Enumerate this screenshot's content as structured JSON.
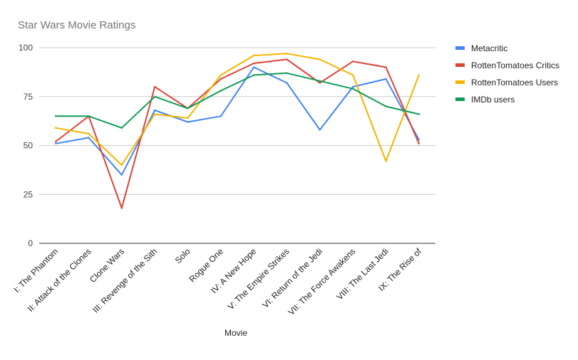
{
  "chart_data": {
    "type": "line",
    "title": "Star Wars Movie Ratings",
    "xlabel": "Movie",
    "ylabel": "",
    "ylim": [
      0,
      100
    ],
    "yticks": [
      0,
      25,
      50,
      75,
      100
    ],
    "grid": true,
    "legend_position": "right",
    "categories": [
      "I: The Phantom",
      "II: Attack of the Clones",
      "Clone Wars",
      "III: Revenge of the Sith",
      "Solo",
      "Rogue One",
      "IV: A New Hope",
      "V: The Empire Strikes",
      "VI: Return of the Jedi",
      "VII: The Force Awakens",
      "VIII: The Last Jedi",
      "IX: The Rise of"
    ],
    "series": [
      {
        "name": "Metacritic",
        "color": "#4285f4",
        "values": [
          51,
          54,
          35,
          68,
          62,
          65,
          90,
          82,
          58,
          80,
          84,
          53
        ]
      },
      {
        "name": "RottenTomatoes Critics",
        "color": "#db4437",
        "values": [
          52,
          65,
          18,
          80,
          69,
          84,
          92,
          94,
          82,
          93,
          90,
          51
        ]
      },
      {
        "name": "RottenTomatoes Users",
        "color": "#f4b400",
        "values": [
          59,
          56,
          40,
          66,
          64,
          86,
          96,
          97,
          94,
          86,
          42,
          86
        ]
      },
      {
        "name": "IMDb users",
        "color": "#0f9d58",
        "values": [
          65,
          65,
          59,
          75,
          69,
          78,
          86,
          87,
          83,
          79,
          70,
          66
        ]
      }
    ]
  }
}
